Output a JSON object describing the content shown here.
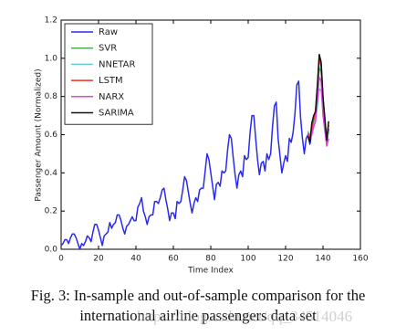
{
  "chart_data": {
    "type": "line",
    "x_label": "Time Index",
    "y_label": "Passenger Amount (Normalized)",
    "xlim": [
      0,
      160
    ],
    "xticks": [
      0,
      20,
      40,
      60,
      80,
      100,
      120,
      140,
      160
    ],
    "ylim": [
      0,
      1.2
    ],
    "yticks": [
      {
        "value": 0,
        "label": "0.0"
      },
      0.2,
      0.4,
      0.6,
      0.8,
      {
        "value": 1,
        "label": "1.0"
      },
      1.2
    ],
    "grid": false,
    "legend": "upper left",
    "series": [
      {
        "name": "Raw",
        "color": "#2a2aee",
        "x": [
          0,
          1,
          2,
          3,
          4,
          5,
          6,
          7,
          8,
          9,
          10,
          11,
          12,
          13,
          14,
          15,
          16,
          17,
          18,
          19,
          20,
          21,
          22,
          23,
          24,
          25,
          26,
          27,
          28,
          29,
          30,
          31,
          32,
          33,
          34,
          35,
          36,
          37,
          38,
          39,
          40,
          41,
          42,
          43,
          44,
          45,
          46,
          47,
          48,
          49,
          50,
          51,
          52,
          53,
          54,
          55,
          56,
          57,
          58,
          59,
          60,
          61,
          62,
          63,
          64,
          65,
          66,
          67,
          68,
          69,
          70,
          71,
          72,
          73,
          74,
          75,
          76,
          77,
          78,
          79,
          80,
          81,
          82,
          83,
          84,
          85,
          86,
          87,
          88,
          89,
          90,
          91,
          92,
          93,
          94,
          95,
          96,
          97,
          98,
          99,
          100,
          101,
          102,
          103,
          104,
          105,
          106,
          107,
          108,
          109,
          110,
          111,
          112,
          113,
          114,
          115,
          116,
          117,
          118,
          119,
          120,
          121,
          122,
          123,
          124,
          125,
          126,
          127,
          128,
          129,
          130,
          131,
          132,
          133,
          134,
          135,
          136,
          137,
          138,
          139,
          140,
          141,
          142,
          143
        ],
        "values": [
          0.02,
          0.03,
          0.05,
          0.05,
          0.03,
          0.06,
          0.08,
          0.08,
          0.06,
          0.03,
          0,
          0.03,
          0.02,
          0.04,
          0.07,
          0.06,
          0.04,
          0.09,
          0.13,
          0.13,
          0.1,
          0.06,
          0.02,
          0.07,
          0.08,
          0.09,
          0.14,
          0.11,
          0.13,
          0.14,
          0.18,
          0.18,
          0.15,
          0.11,
          0.08,
          0.12,
          0.13,
          0.15,
          0.17,
          0.15,
          0.15,
          0.22,
          0.24,
          0.27,
          0.2,
          0.17,
          0.13,
          0.17,
          0.18,
          0.18,
          0.25,
          0.25,
          0.24,
          0.27,
          0.31,
          0.32,
          0.26,
          0.21,
          0.15,
          0.19,
          0.19,
          0.16,
          0.25,
          0.24,
          0.25,
          0.31,
          0.38,
          0.36,
          0.3,
          0.24,
          0.19,
          0.24,
          0.27,
          0.25,
          0.31,
          0.32,
          0.32,
          0.41,
          0.5,
          0.47,
          0.4,
          0.33,
          0.26,
          0.34,
          0.35,
          0.33,
          0.41,
          0.4,
          0.41,
          0.52,
          0.6,
          0.58,
          0.48,
          0.39,
          0.32,
          0.39,
          0.41,
          0.38,
          0.49,
          0.47,
          0.48,
          0.61,
          0.7,
          0.7,
          0.58,
          0.47,
          0.39,
          0.45,
          0.46,
          0.41,
          0.5,
          0.47,
          0.5,
          0.64,
          0.75,
          0.77,
          0.58,
          0.49,
          0.4,
          0.45,
          0.49,
          0.46,
          0.58,
          0.56,
          0.61,
          0.71,
          0.86,
          0.88,
          0.69,
          0.58,
          0.5,
          0.58,
          0.6,
          0.55,
          0.61,
          0.69,
          0.71,
          0.83,
          1.0,
          0.97,
          0.78,
          0.69,
          0.55,
          0.63
        ]
      },
      {
        "name": "SVR",
        "color": "#55aa55",
        "x": [
          132,
          133,
          134,
          135,
          136,
          137,
          138,
          139,
          140,
          141,
          142,
          143
        ],
        "values": [
          0.6,
          0.58,
          0.62,
          0.67,
          0.7,
          0.8,
          0.95,
          0.93,
          0.76,
          0.66,
          0.56,
          0.62
        ]
      },
      {
        "name": "NNETAR",
        "color": "#66cccc",
        "x": [
          132,
          133,
          134,
          135,
          136,
          137,
          138,
          139,
          140,
          141,
          142,
          143
        ],
        "values": [
          0.62,
          0.59,
          0.63,
          0.66,
          0.68,
          0.75,
          0.84,
          0.83,
          0.72,
          0.64,
          0.58,
          0.61
        ]
      },
      {
        "name": "LSTM",
        "color": "#ee3322",
        "x": [
          132,
          133,
          134,
          135,
          136,
          137,
          138,
          139,
          140,
          141,
          142,
          143
        ],
        "values": [
          0.61,
          0.57,
          0.63,
          0.68,
          0.73,
          0.85,
          1.01,
          0.96,
          0.79,
          0.66,
          0.58,
          0.65
        ]
      },
      {
        "name": "NARX",
        "color": "#dd44dd",
        "x": [
          132,
          133,
          134,
          135,
          136,
          137,
          138,
          139,
          140,
          141,
          142,
          143
        ],
        "values": [
          0.58,
          0.57,
          0.6,
          0.64,
          0.67,
          0.78,
          0.9,
          0.88,
          0.7,
          0.62,
          0.54,
          0.58
        ]
      },
      {
        "name": "SARIMA",
        "color": "#111111",
        "x": [
          132,
          133,
          134,
          135,
          136,
          137,
          138,
          139,
          140,
          141,
          142,
          143
        ],
        "values": [
          0.59,
          0.56,
          0.66,
          0.7,
          0.72,
          0.86,
          1.02,
          0.98,
          0.8,
          0.68,
          0.57,
          0.67
        ]
      }
    ]
  },
  "caption": [
    "Fig. 3: In-sample and out-of-sample comparison for the",
    "international airline passengers data set"
  ],
  "watermark": "https://blog.csdn.net/qq_34514046"
}
